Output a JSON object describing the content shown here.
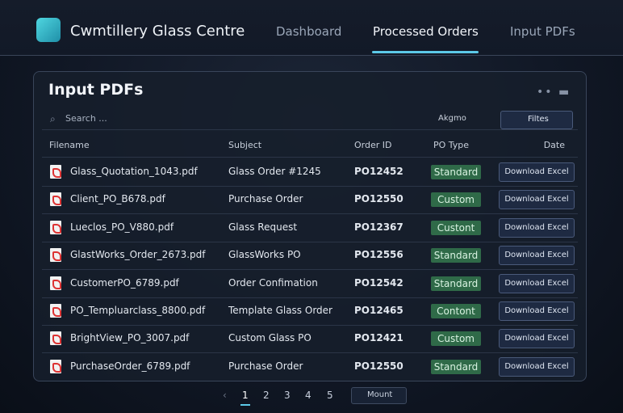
{
  "header": {
    "brand": "Cwmtillery Glass Centre",
    "nav": [
      "Dashboard",
      "Processed Orders",
      "Input PDFs"
    ]
  },
  "panel": {
    "title": "Input PDFs",
    "search_placeholder": "Search ...",
    "sort_label": "Akgmo",
    "filter_label": "Filtes"
  },
  "table": {
    "columns": [
      "Filename",
      "Subject",
      "Order ID",
      "PO Type",
      "Date"
    ],
    "rows": [
      [
        "Glass_Quotation_1043.pdf",
        "Glass Order #1245",
        "PO12452",
        "Standard",
        "Download Excel"
      ],
      [
        "Client_PO_B678.pdf",
        "Purchase Order",
        "PO12550",
        "Custom",
        "Download Excel"
      ],
      [
        "Lueclos_PO_V880.pdf",
        "Glass Request",
        "PO12367",
        "Custont",
        "Download Excel"
      ],
      [
        "GlastWorks_Order_2673.pdf",
        "GlassWorks PO",
        "PO12556",
        "Standard",
        "Download Excel"
      ],
      [
        "CustomerPO_6789.pdf",
        "Order Confimation",
        "PO12542",
        "Standard",
        "Download Excel"
      ],
      [
        "PO_Templuarclass_8800.pdf",
        "Template Glass Order",
        "PO12465",
        "Contont",
        "Download Excel"
      ],
      [
        "BrightView_PO_3007.pdf",
        "Custom Glass PO",
        "PO12421",
        "Custom",
        "Download Excel"
      ],
      [
        "PurchaseOrder_6789.pdf",
        "Purchase Order",
        "PO12550",
        "Standard",
        "Download Excel"
      ]
    ]
  },
  "pagination": {
    "pages": [
      "1",
      "2",
      "3",
      "4",
      "5"
    ],
    "select": "Mount"
  }
}
